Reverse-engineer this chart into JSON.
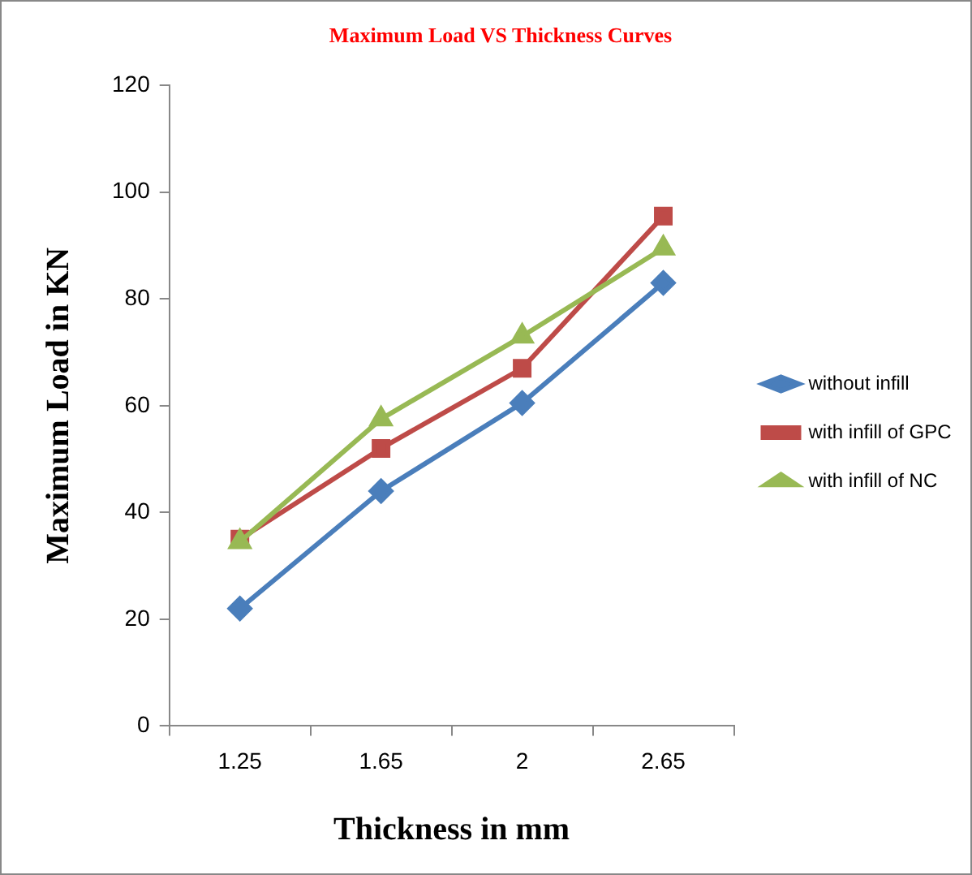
{
  "chart_data": {
    "type": "line",
    "title": "Maximum Load VS Thickness Curves",
    "xlabel": "Thickness in mm",
    "ylabel": "Maximum Load in KN",
    "categories": [
      "1.25",
      "1.65",
      "2",
      "2.65"
    ],
    "series": [
      {
        "name": "without infill",
        "color": "#4a7ebb",
        "marker": "diamond",
        "values": [
          22,
          44,
          60.5,
          83
        ]
      },
      {
        "name": "with infill of GPC",
        "color": "#be4b48",
        "marker": "square",
        "values": [
          35,
          52,
          67,
          95.5
        ]
      },
      {
        "name": "with infill of NC",
        "color": "#98b954",
        "marker": "triangle",
        "values": [
          34.5,
          57.5,
          73,
          89.5
        ]
      }
    ],
    "ylim": [
      0,
      120
    ],
    "yticks": [
      0,
      20,
      40,
      60,
      80,
      100,
      120
    ],
    "grid": false,
    "legend": "right"
  }
}
